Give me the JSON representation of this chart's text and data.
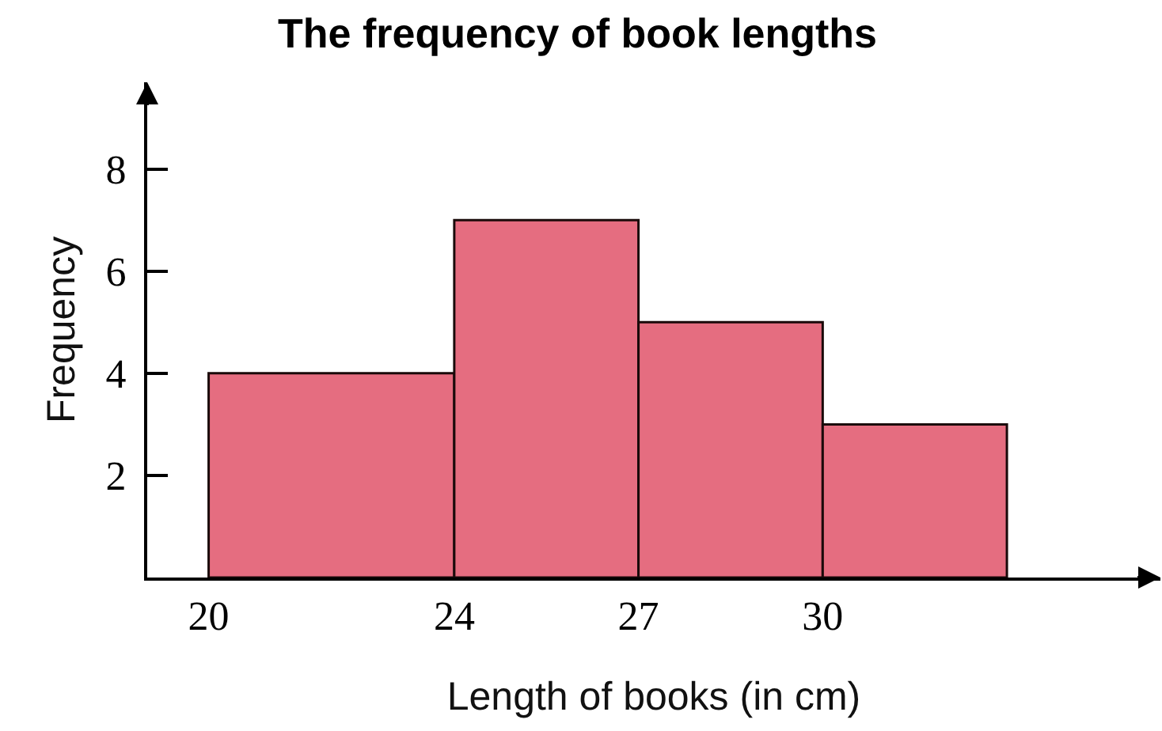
{
  "chart_data": {
    "type": "histogram",
    "title": "The frequency of book lengths",
    "xlabel": "Length of books (in cm)",
    "ylabel": "Frequency",
    "bins": [
      20,
      24,
      27,
      30,
      33
    ],
    "values": [
      4,
      7,
      5,
      3
    ],
    "color": "#e56d80",
    "xlim": [
      19,
      35.5
    ],
    "ylim": [
      0,
      9.7
    ],
    "xticks": [
      20,
      24,
      27,
      30
    ],
    "yticks": [
      2,
      4,
      6,
      8
    ]
  }
}
